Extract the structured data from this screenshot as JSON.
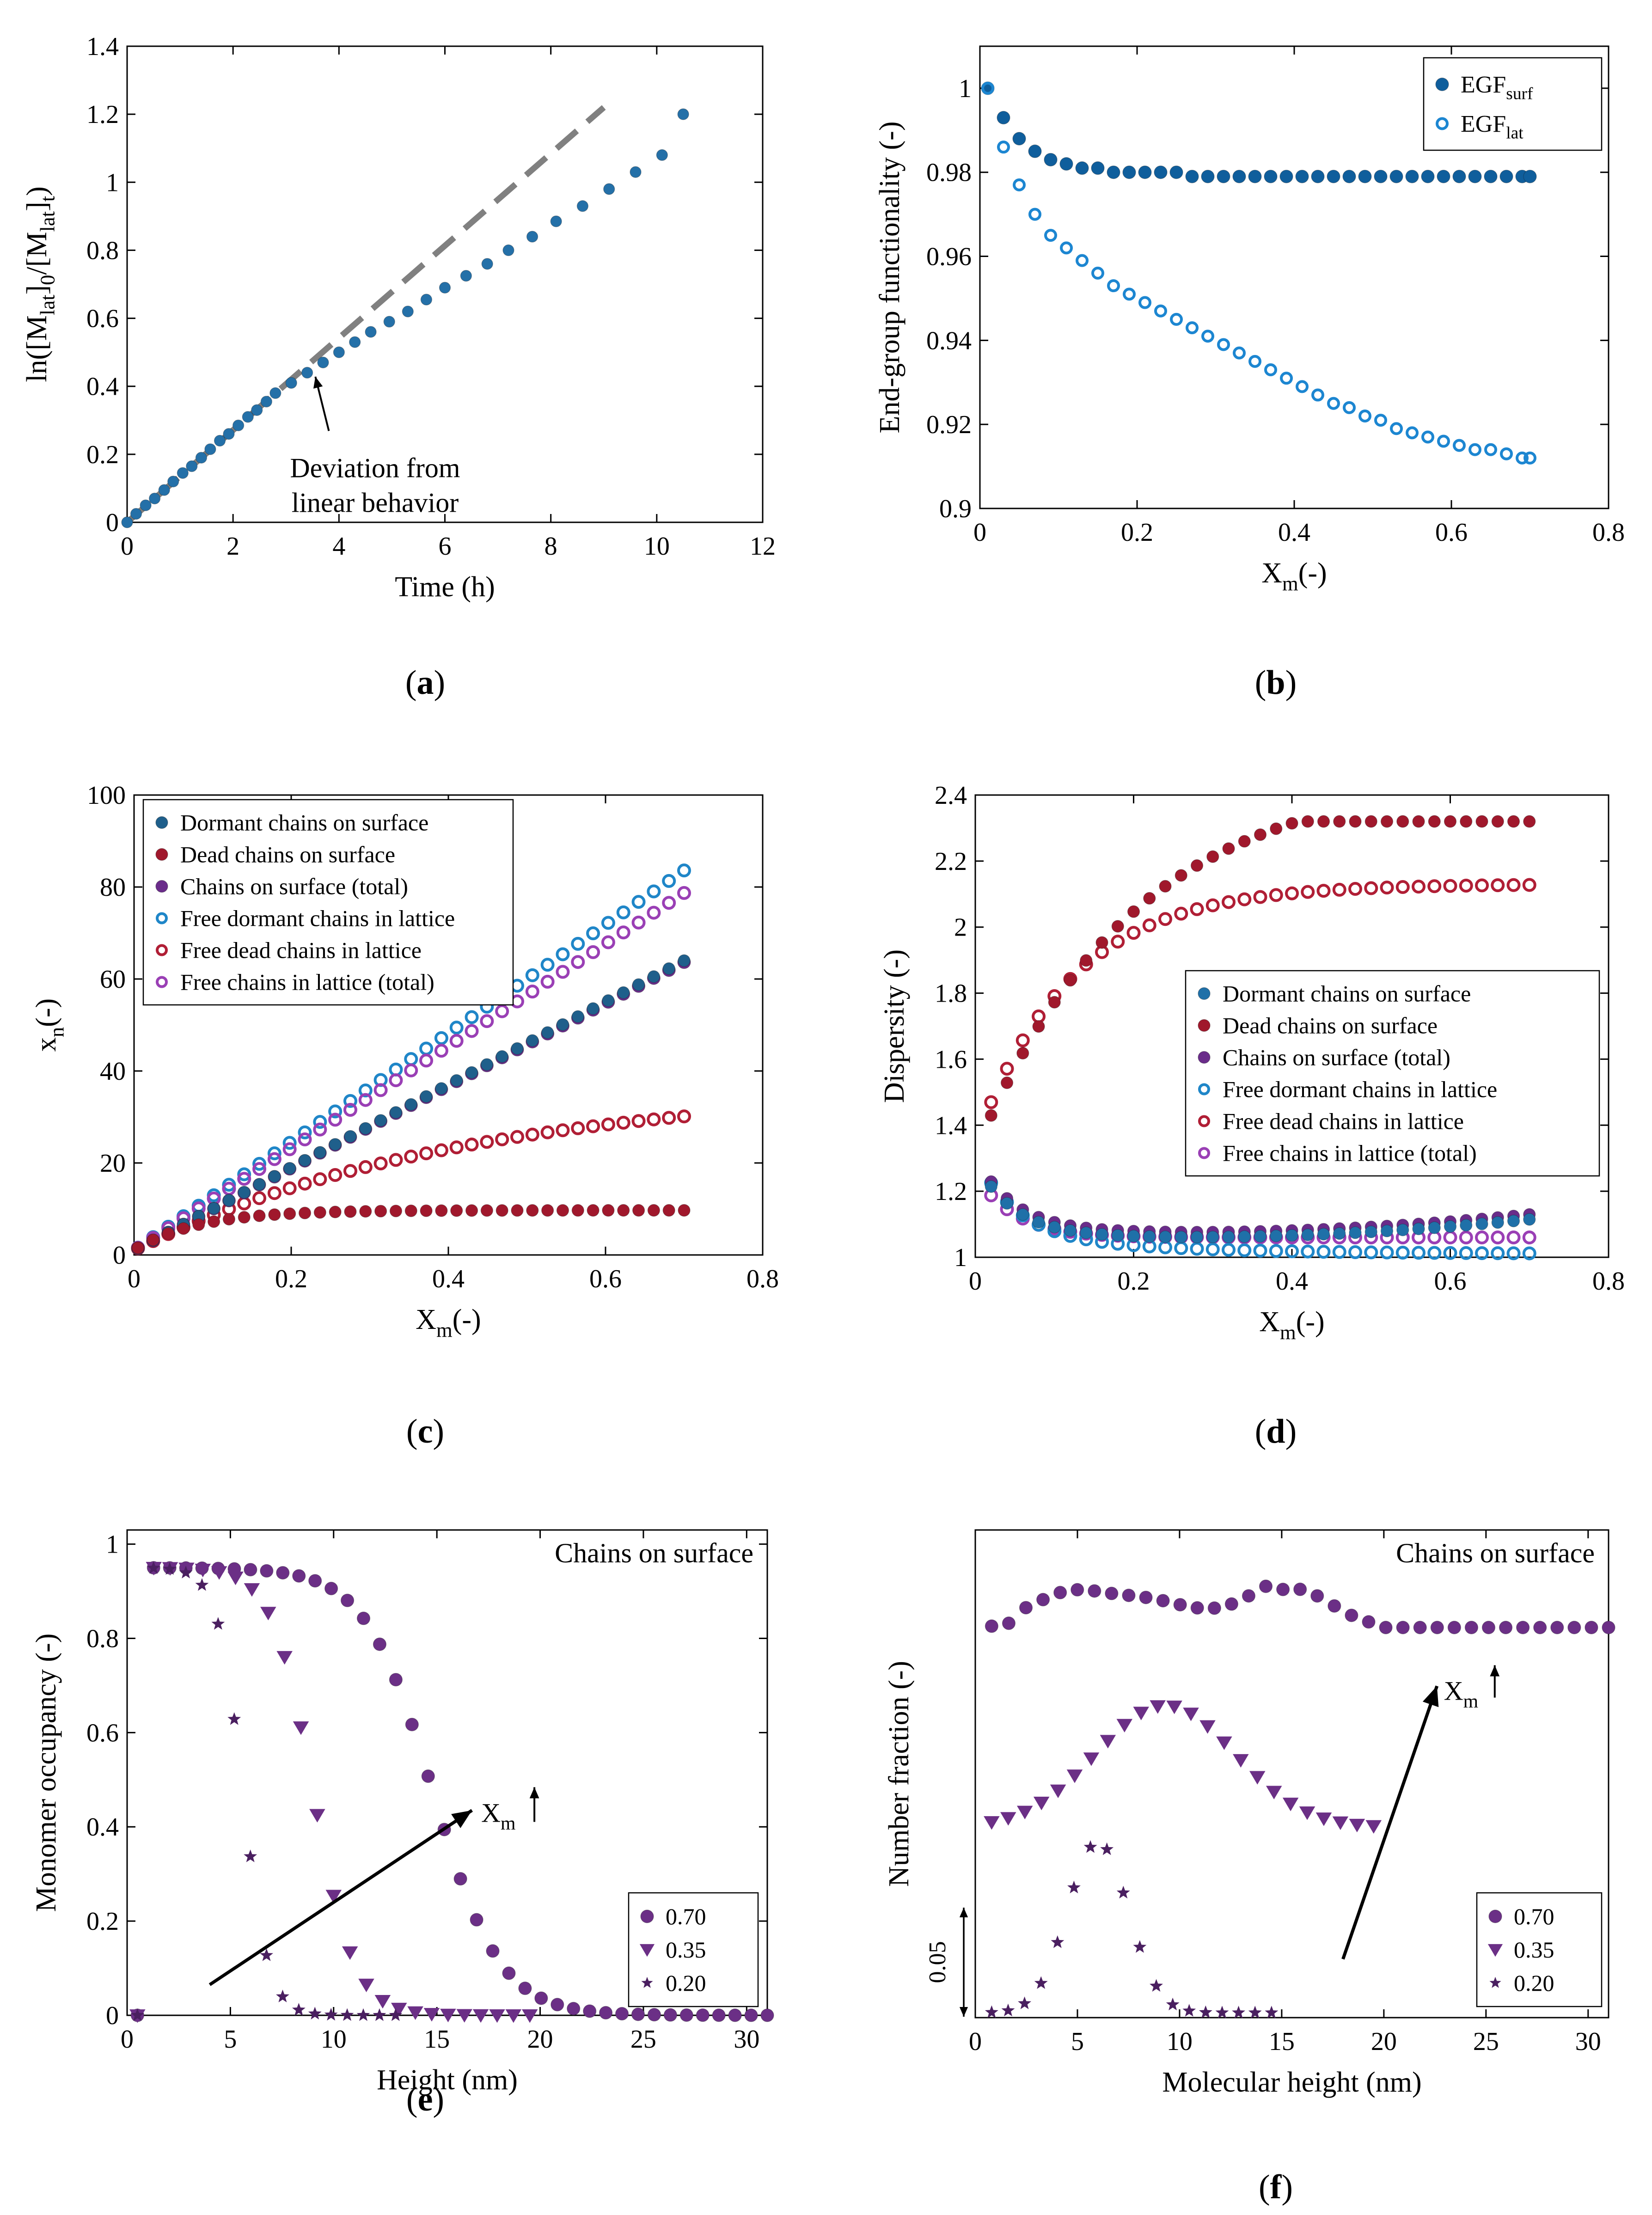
{
  "chart_data": [
    {
      "id": "a",
      "type": "scatter",
      "panel_label": "a",
      "xlabel": "Time (h)",
      "ylabel": "ln([M_lat]_0/[M_lat]_t)",
      "xlim": [
        0,
        12
      ],
      "ylim": [
        0,
        1.4
      ],
      "xticks": [
        0,
        2,
        4,
        6,
        8,
        10,
        12
      ],
      "yticks": [
        0,
        0.2,
        0.4,
        0.6,
        0.8,
        1,
        1.2,
        1.4
      ],
      "annotation": {
        "lines": [
          "Deviation from",
          "linear behavior"
        ],
        "x": 2.5,
        "y": 0.16,
        "arrow_to": [
          3.45,
          0.45
        ]
      },
      "reference_line": {
        "name": "linear fit",
        "color": "#808080",
        "x": [
          0,
          9
        ],
        "y": [
          0,
          1.22
        ]
      },
      "series": [
        {
          "name": "data",
          "marker": "filled",
          "color": "#2470a8",
          "x": [
            0,
            0.17,
            0.35,
            0.52,
            0.7,
            0.87,
            1.05,
            1.22,
            1.4,
            1.57,
            1.75,
            1.92,
            2.1,
            2.28,
            2.45,
            2.63,
            2.8,
            3.1,
            3.4,
            3.7,
            4.0,
            4.3,
            4.6,
            4.95,
            5.3,
            5.65,
            6.0,
            6.4,
            6.8,
            7.2,
            7.65,
            8.1,
            8.6,
            9.1,
            9.6,
            10.1,
            10.5
          ],
          "y": [
            0,
            0.025,
            0.05,
            0.07,
            0.095,
            0.12,
            0.145,
            0.165,
            0.19,
            0.215,
            0.24,
            0.26,
            0.285,
            0.31,
            0.33,
            0.355,
            0.38,
            0.41,
            0.44,
            0.47,
            0.5,
            0.53,
            0.56,
            0.59,
            0.62,
            0.655,
            0.69,
            0.725,
            0.76,
            0.8,
            0.84,
            0.885,
            0.93,
            0.98,
            1.03,
            1.08,
            1.2
          ]
        }
      ]
    },
    {
      "id": "b",
      "type": "scatter",
      "panel_label": "b",
      "xlabel": "X_m(-)",
      "ylabel": "End-group functionality (-)",
      "xlim": [
        0,
        0.8
      ],
      "ylim": [
        0.9,
        1.01
      ],
      "xticks": [
        0,
        0.2,
        0.4,
        0.6,
        0.8
      ],
      "yticks": [
        0.9,
        0.92,
        0.94,
        0.96,
        0.98,
        1
      ],
      "legend": "top-right",
      "series": [
        {
          "name": "EGF_surf",
          "marker": "filled",
          "color": "#0f5e9c",
          "x": [
            0.01,
            0.03,
            0.05,
            0.07,
            0.09,
            0.11,
            0.13,
            0.15,
            0.17,
            0.19,
            0.21,
            0.23,
            0.25,
            0.27,
            0.29,
            0.31,
            0.33,
            0.35,
            0.37,
            0.39,
            0.41,
            0.43,
            0.45,
            0.47,
            0.49,
            0.51,
            0.53,
            0.55,
            0.57,
            0.59,
            0.61,
            0.63,
            0.65,
            0.67,
            0.69,
            0.7
          ],
          "y": [
            1.0,
            0.993,
            0.988,
            0.985,
            0.983,
            0.982,
            0.981,
            0.981,
            0.98,
            0.98,
            0.98,
            0.98,
            0.98,
            0.979,
            0.979,
            0.979,
            0.979,
            0.979,
            0.979,
            0.979,
            0.979,
            0.979,
            0.979,
            0.979,
            0.979,
            0.979,
            0.979,
            0.979,
            0.979,
            0.979,
            0.979,
            0.979,
            0.979,
            0.979,
            0.979,
            0.979
          ]
        },
        {
          "name": "EGF_lat",
          "marker": "open",
          "color": "#1c86d1",
          "x": [
            0.01,
            0.03,
            0.05,
            0.07,
            0.09,
            0.11,
            0.13,
            0.15,
            0.17,
            0.19,
            0.21,
            0.23,
            0.25,
            0.27,
            0.29,
            0.31,
            0.33,
            0.35,
            0.37,
            0.39,
            0.41,
            0.43,
            0.45,
            0.47,
            0.49,
            0.51,
            0.53,
            0.55,
            0.57,
            0.59,
            0.61,
            0.63,
            0.65,
            0.67,
            0.69,
            0.7
          ],
          "y": [
            1.0,
            0.986,
            0.977,
            0.97,
            0.965,
            0.962,
            0.959,
            0.956,
            0.953,
            0.951,
            0.949,
            0.947,
            0.945,
            0.943,
            0.941,
            0.939,
            0.937,
            0.935,
            0.933,
            0.931,
            0.929,
            0.927,
            0.925,
            0.924,
            0.922,
            0.921,
            0.919,
            0.918,
            0.917,
            0.916,
            0.915,
            0.914,
            0.914,
            0.913,
            0.912,
            0.912
          ]
        }
      ]
    },
    {
      "id": "c",
      "type": "scatter",
      "panel_label": "c",
      "xlabel": "X_m(-)",
      "ylabel": "x_n(-)",
      "xlim": [
        0,
        0.8
      ],
      "ylim": [
        0,
        100
      ],
      "xticks": [
        0,
        0.2,
        0.4,
        0.6,
        0.8
      ],
      "yticks": [
        0,
        20,
        40,
        60,
        80,
        100
      ],
      "legend": "top-left",
      "series": [
        {
          "name": "Dormant chains on surface",
          "marker": "filled",
          "color": "#1f5f8b"
        },
        {
          "name": "Dead chains on surface",
          "marker": "filled",
          "color": "#a0182c"
        },
        {
          "name": "Chains on surface (total)",
          "marker": "filled",
          "color": "#6a2c8a"
        },
        {
          "name": "Free dormant chains in lattice",
          "marker": "open",
          "color": "#1f86c8"
        },
        {
          "name": "Free dead chains in lattice",
          "marker": "open",
          "color": "#b01e35"
        },
        {
          "name": "Free chains in lattice (total)",
          "marker": "open",
          "color": "#9a3fb5"
        }
      ]
    },
    {
      "id": "d",
      "type": "scatter",
      "panel_label": "d",
      "xlabel": "X_m(-)",
      "ylabel": "Dispersity (-)",
      "xlim": [
        0,
        0.8
      ],
      "ylim": [
        1,
        2.4
      ],
      "xticks": [
        0,
        0.2,
        0.4,
        0.6,
        0.8
      ],
      "yticks": [
        1,
        1.2,
        1.4,
        1.6,
        1.8,
        2,
        2.2,
        2.4
      ],
      "legend": "center-right",
      "series": [
        {
          "name": "Dormant chains on surface",
          "marker": "filled",
          "color": "#1f70a8"
        },
        {
          "name": "Dead chains on surface",
          "marker": "filled",
          "color": "#a0182c"
        },
        {
          "name": "Chains on surface (total)",
          "marker": "filled",
          "color": "#6a2c8a"
        },
        {
          "name": "Free dormant chains in lattice",
          "marker": "open",
          "color": "#1f86c8"
        },
        {
          "name": "Free dead chains in lattice",
          "marker": "open",
          "color": "#b01e35"
        },
        {
          "name": "Free chains in lattice (total)",
          "marker": "open",
          "color": "#9a3fb5"
        }
      ]
    },
    {
      "id": "e",
      "type": "scatter",
      "panel_label": "e",
      "title": "Chains on surface",
      "xlabel": "Height (nm)",
      "ylabel": "Monomer occupancy (-)",
      "xlim": [
        0,
        31
      ],
      "ylim": [
        0,
        1.03
      ],
      "xticks": [
        0,
        5,
        10,
        15,
        20,
        25,
        30
      ],
      "yticks": [
        0,
        0.2,
        0.4,
        0.6,
        0.8,
        1
      ],
      "legend": "bottom-right",
      "arrow": {
        "from": [
          4,
          0.065
        ],
        "to": [
          16.7,
          0.435
        ],
        "label": "X_m"
      },
      "series": [
        {
          "name": "0.70",
          "marker": "circle",
          "color": "#6b2f86"
        },
        {
          "name": "0.35",
          "marker": "triangle",
          "color": "#6b2f86"
        },
        {
          "name": "0.20",
          "marker": "star",
          "color": "#4a1f60"
        }
      ]
    },
    {
      "id": "f",
      "type": "scatter",
      "panel_label": "f",
      "title": "Chains on surface",
      "xlabel": "Molecular height (nm)",
      "ylabel": "Number fraction (-)",
      "xlim": [
        0,
        31
      ],
      "ylim": [
        0,
        1
      ],
      "xticks": [
        0,
        5,
        10,
        15,
        20,
        25,
        30
      ],
      "scale_bar": "0.05",
      "legend": "bottom-right",
      "arrow": {
        "from": [
          18,
          0.12
        ],
        "to": [
          22.6,
          0.68
        ],
        "label": "X_m"
      },
      "series": [
        {
          "name": "0.70",
          "marker": "circle",
          "color": "#6b2f86"
        },
        {
          "name": "0.35",
          "marker": "triangle",
          "color": "#6b2f86"
        },
        {
          "name": "0.20",
          "marker": "star",
          "color": "#4a1f60"
        }
      ]
    }
  ]
}
